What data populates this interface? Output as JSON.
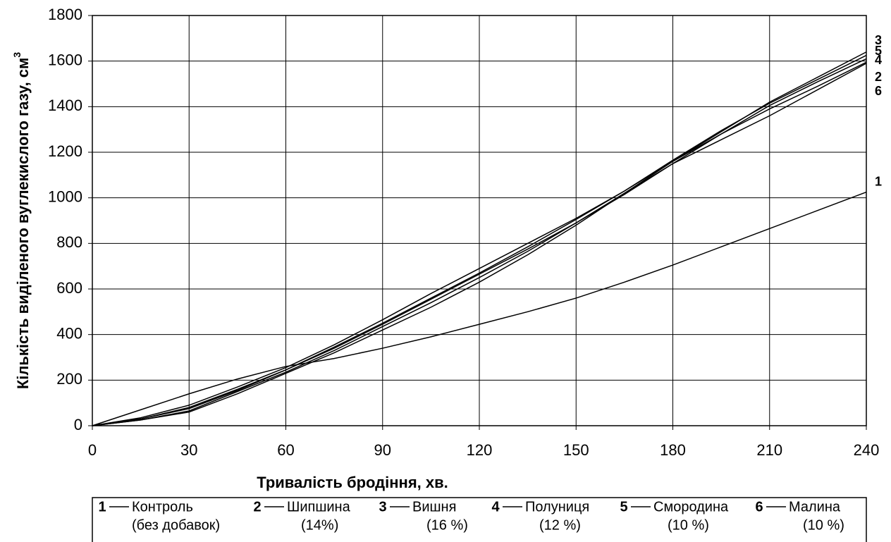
{
  "chart_data": {
    "type": "line",
    "xlabel": "Тривалість бродіння, хв.",
    "ylabel": "Кількість виділеного вуглекислого газу, см",
    "ylabel_sup": "3",
    "x": [
      0,
      15,
      30,
      45,
      60,
      75,
      90,
      105,
      120,
      135,
      150,
      165,
      180,
      195,
      210,
      225,
      240
    ],
    "xlim": [
      0,
      240
    ],
    "xticks": [
      0,
      30,
      60,
      90,
      120,
      150,
      180,
      210,
      240
    ],
    "ylim": [
      0,
      1800
    ],
    "yticks": [
      0,
      200,
      400,
      600,
      800,
      1000,
      1200,
      1400,
      1600,
      1800
    ],
    "grid": true,
    "series": [
      {
        "label": "1",
        "name": "Контроль",
        "note": "(без добавок)",
        "color": "#000000",
        "values": [
          0,
          70,
          140,
          205,
          260,
          295,
          340,
          390,
          445,
          500,
          560,
          630,
          705,
          785,
          865,
          945,
          1025
        ]
      },
      {
        "label": "2",
        "name": "Шипшина",
        "note": "(14%)",
        "color": "#000000",
        "values": [
          0,
          25,
          60,
          140,
          230,
          320,
          420,
          520,
          630,
          750,
          880,
          1020,
          1160,
          1280,
          1390,
          1490,
          1595
        ]
      },
      {
        "label": "3",
        "name": "Вишня",
        "note": "(16 %)",
        "color": "#000000",
        "values": [
          0,
          35,
          90,
          170,
          255,
          355,
          465,
          580,
          690,
          800,
          910,
          1030,
          1160,
          1290,
          1420,
          1530,
          1640
        ]
      },
      {
        "label": "4",
        "name": "Полуниця",
        "note": "(12 %)",
        "color": "#000000",
        "values": [
          0,
          30,
          80,
          160,
          245,
          340,
          445,
          555,
          665,
          775,
          890,
          1015,
          1150,
          1280,
          1405,
          1510,
          1610
        ]
      },
      {
        "label": "5",
        "name": "Смородина",
        "note": "(10 %)",
        "color": "#000000",
        "values": [
          0,
          30,
          75,
          155,
          245,
          345,
          450,
          560,
          670,
          785,
          905,
          1030,
          1165,
          1295,
          1415,
          1520,
          1625
        ]
      },
      {
        "label": "6",
        "name": "Малина",
        "note": "(10 %)",
        "color": "#000000",
        "values": [
          0,
          25,
          65,
          150,
          235,
          330,
          435,
          540,
          650,
          765,
          890,
          1020,
          1150,
          1255,
          1360,
          1475,
          1590
        ]
      }
    ]
  }
}
